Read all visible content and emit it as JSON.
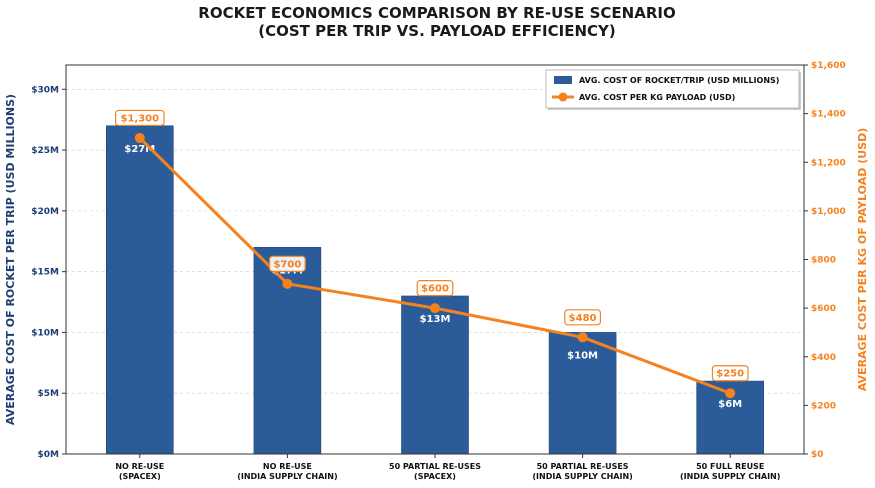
{
  "chart_data": {
    "type": "bar",
    "title_lines": [
      "ROCKET ECONOMICS COMPARISON BY RE-USE SCENARIO",
      "(COST PER TRIP VS. PAYLOAD EFFICIENCY)"
    ],
    "categories": [
      [
        "NO RE-USE",
        "(SPACEX)"
      ],
      [
        "NO RE-USE",
        "(INDIA SUPPLY CHAIN)"
      ],
      [
        "50 PARTIAL RE-USES",
        "(SPACEX)"
      ],
      [
        "50 PARTIAL RE-USES",
        "(INDIA SUPPLY CHAIN)"
      ],
      [
        "50 FULL REUSE",
        "(INDIA SUPPLY CHAIN)"
      ]
    ],
    "series": [
      {
        "name": "AVG. COST OF ROCKET/TRIP (USD MILLIONS)",
        "type": "bar",
        "axis": "left",
        "color": "#2b5c99",
        "values": [
          27,
          17,
          13,
          10,
          6
        ],
        "labels": [
          "$27M",
          "$17M",
          "$13M",
          "$10M",
          "$6M"
        ]
      },
      {
        "name": "AVG. COST PER KG PAYLOAD (USD)",
        "type": "line",
        "axis": "right",
        "color": "#f5821f",
        "values": [
          1300,
          700,
          600,
          480,
          250
        ],
        "labels": [
          "$1,300",
          "$700",
          "$600",
          "$480",
          "$250"
        ]
      }
    ],
    "ylabel_left": "AVERAGE COST OF ROCKET PER TRIP (USD MILLIONS)",
    "ylabel_right": "AVERAGE COST PER KG OF PAYLOAD (USD)",
    "ylim_left": [
      0,
      32
    ],
    "ylim_right": [
      0,
      1600
    ],
    "yticks_left": [
      {
        "value": 0,
        "label": "$0M"
      },
      {
        "value": 5,
        "label": "$5M"
      },
      {
        "value": 10,
        "label": "$10M"
      },
      {
        "value": 15,
        "label": "$15M"
      },
      {
        "value": 20,
        "label": "$20M"
      },
      {
        "value": 25,
        "label": "$25M"
      },
      {
        "value": 30,
        "label": "$30M"
      }
    ],
    "yticks_right": [
      {
        "value": 0,
        "label": "$0"
      },
      {
        "value": 200,
        "label": "$200"
      },
      {
        "value": 400,
        "label": "$400"
      },
      {
        "value": 600,
        "label": "$600"
      },
      {
        "value": 800,
        "label": "$800"
      },
      {
        "value": 1000,
        "label": "$1,000"
      },
      {
        "value": 1200,
        "label": "$1,200"
      },
      {
        "value": 1400,
        "label": "$1,400"
      },
      {
        "value": 1600,
        "label": "$1,600"
      }
    ],
    "grid": true,
    "legend_position": "top-right"
  }
}
